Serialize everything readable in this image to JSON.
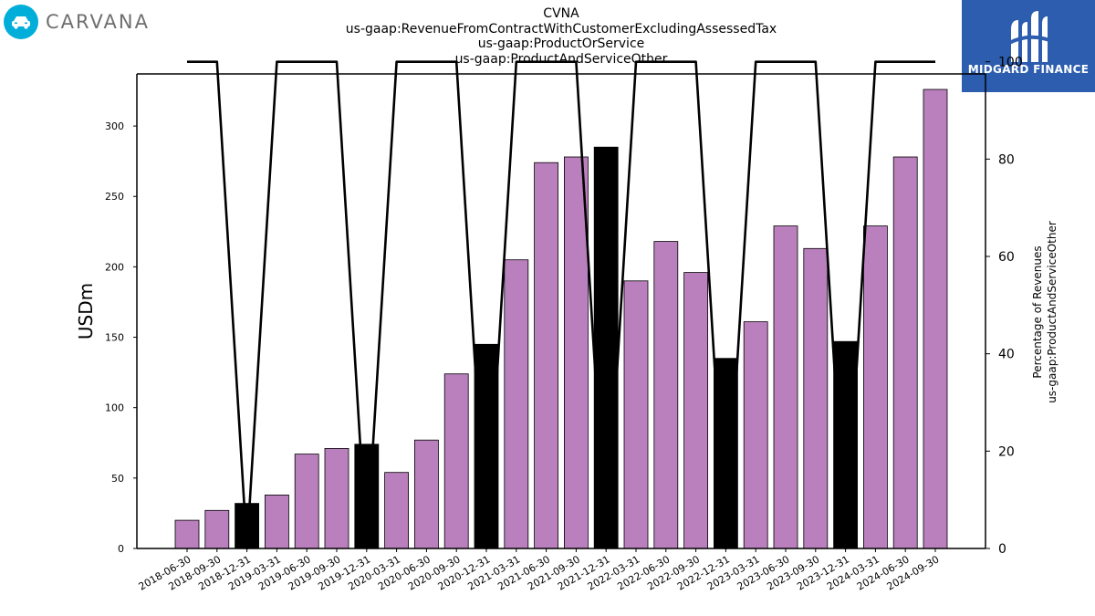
{
  "brand_left": {
    "name": "CARVANA",
    "icon": "car-icon"
  },
  "brand_right": {
    "name": "MIDGARD FINANCE",
    "icon": "midgard-logo-icon",
    "color": "#2D5DAE"
  },
  "titles": [
    "CVNA",
    "us-gaap:RevenueFromContractWithCustomerExcludingAssessedTax",
    "us-gaap:ProductOrService",
    "us-gaap:ProductAndServiceOther"
  ],
  "chart_data": {
    "type": "bar",
    "categories": [
      "2018-06-30",
      "2018-09-30",
      "2018-12-31",
      "2019-03-31",
      "2019-06-30",
      "2019-09-30",
      "2019-12-31",
      "2020-03-31",
      "2020-06-30",
      "2020-09-30",
      "2020-12-31",
      "2021-03-31",
      "2021-06-30",
      "2021-09-30",
      "2021-12-31",
      "2022-03-31",
      "2022-06-30",
      "2022-09-30",
      "2022-12-31",
      "2023-03-31",
      "2023-06-30",
      "2023-09-30",
      "2023-12-31",
      "2024-03-31",
      "2024-06-30",
      "2024-09-30"
    ],
    "series": [
      {
        "type": "bar",
        "axis": "left",
        "values": [
          20,
          27,
          32,
          38,
          67,
          71,
          74,
          54,
          77,
          124,
          145,
          205,
          274,
          278,
          285,
          190,
          218,
          196,
          135,
          161,
          229,
          213,
          147,
          229,
          278,
          326
        ]
      },
      {
        "type": "line",
        "axis": "right",
        "values": [
          100,
          100,
          0,
          100,
          100,
          100,
          0,
          100,
          100,
          100,
          0,
          100,
          100,
          100,
          0,
          100,
          100,
          100,
          0,
          100,
          100,
          100,
          0,
          100,
          100,
          100
        ]
      }
    ],
    "highlight_categories": [
      "2018-12-31",
      "2019-12-31",
      "2020-12-31",
      "2021-12-31",
      "2022-12-31",
      "2023-12-31"
    ],
    "ylabel": "USDm",
    "ylabel_right": [
      "Percentage of Revenues",
      "us-gaap:ProductAndServiceOther"
    ],
    "ylim": [
      0,
      337
    ],
    "ylim_right": [
      0,
      97.5
    ],
    "yticks": [
      0,
      50,
      100,
      150,
      200,
      250,
      300
    ],
    "yticks_right": [
      0,
      20,
      40,
      60,
      80,
      100
    ],
    "grid": false,
    "colors": {
      "bar": "#BA7FBD",
      "bar_highlight": "#000000",
      "line": "#000000",
      "edge": "#000000"
    }
  }
}
